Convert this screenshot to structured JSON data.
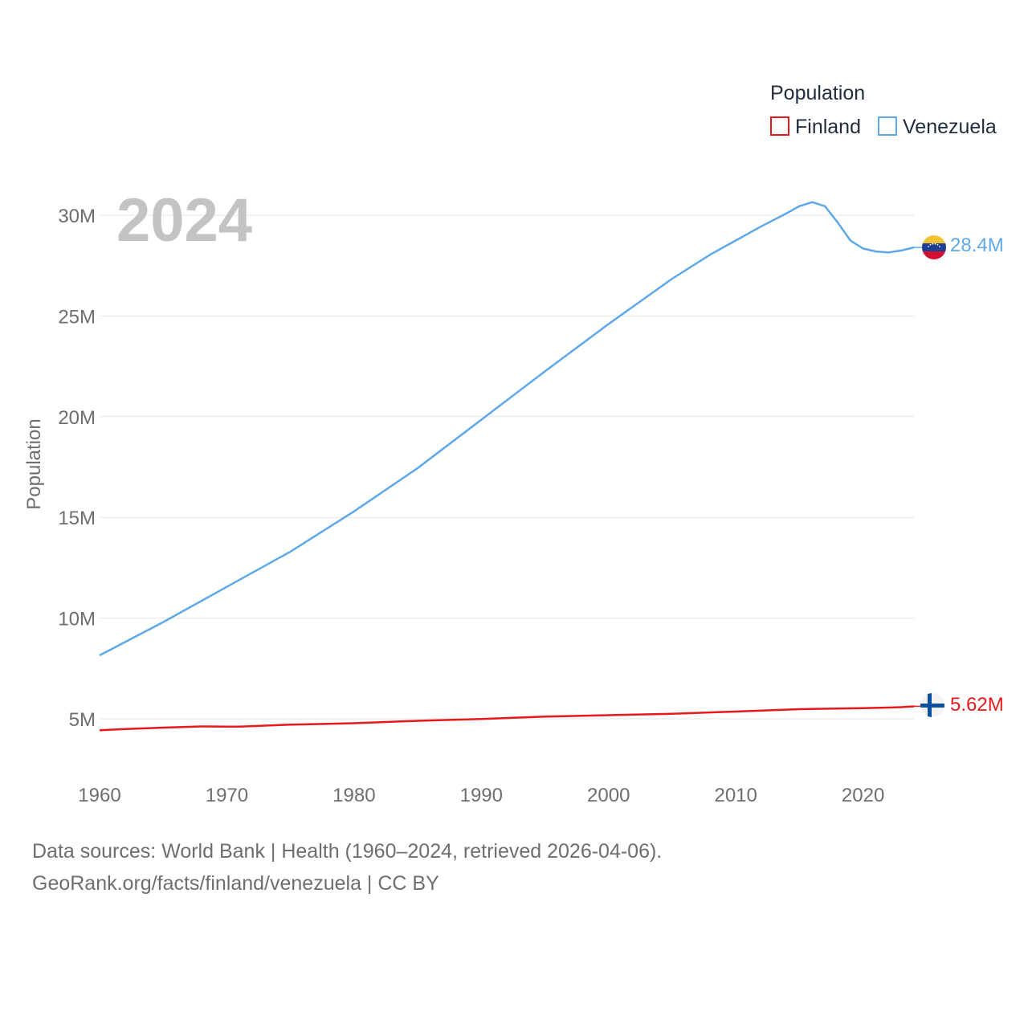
{
  "chart_data": {
    "type": "line",
    "year_label": "2024",
    "ylabel": "Population",
    "xlim": [
      1960,
      2024
    ],
    "ylim": [
      2000000,
      32000000
    ],
    "x_ticks": [
      1960,
      1970,
      1980,
      1990,
      2000,
      2010,
      2020
    ],
    "x_tick_labels": [
      "1960",
      "1970",
      "1980",
      "1990",
      "2000",
      "2010",
      "2020"
    ],
    "y_ticks": [
      5000000,
      10000000,
      15000000,
      20000000,
      25000000,
      30000000
    ],
    "y_tick_labels": [
      "5M",
      "10M",
      "15M",
      "20M",
      "25M",
      "30M"
    ],
    "legend": {
      "title": "Population",
      "placement": "top-right",
      "items": [
        {
          "label": "Finland",
          "color": "#e8191b"
        },
        {
          "label": "Venezuela",
          "color": "#5fa8e8"
        }
      ]
    },
    "series": [
      {
        "name": "Finland",
        "color": "#e8191b",
        "end_label": "5.62M",
        "flag_icon": "finland-flag-icon",
        "x": [
          1960,
          1962,
          1965,
          1968,
          1970,
          1971,
          1975,
          1980,
          1985,
          1990,
          1995,
          2000,
          2005,
          2010,
          2015,
          2020,
          2022,
          2023,
          2024
        ],
        "values": [
          4430000,
          4490000,
          4560000,
          4620000,
          4610000,
          4610000,
          4710000,
          4780000,
          4900000,
          4990000,
          5110000,
          5180000,
          5250000,
          5360000,
          5480000,
          5530000,
          5560000,
          5580000,
          5620000
        ]
      },
      {
        "name": "Venezuela",
        "color": "#5fa8e8",
        "end_label": "28.4M",
        "flag_icon": "venezuela-flag-icon",
        "x": [
          1960,
          1965,
          1970,
          1975,
          1980,
          1985,
          1990,
          1995,
          2000,
          2005,
          2008,
          2010,
          2012,
          2014,
          2015,
          2016,
          2017,
          2018,
          2019,
          2020,
          2021,
          2022,
          2023,
          2024
        ],
        "values": [
          8150000,
          9800000,
          11550000,
          13300000,
          15300000,
          17450000,
          19850000,
          22250000,
          24600000,
          26850000,
          28050000,
          28750000,
          29450000,
          30100000,
          30450000,
          30650000,
          30450000,
          29650000,
          28750000,
          28350000,
          28200000,
          28150000,
          28250000,
          28400000
        ]
      }
    ]
  },
  "footer": {
    "sources": "Data sources: World Bank | Health (1960–2024, retrieved 2026-04-06).",
    "credit": "GeoRank.org/facts/finland/venezuela | CC BY"
  }
}
